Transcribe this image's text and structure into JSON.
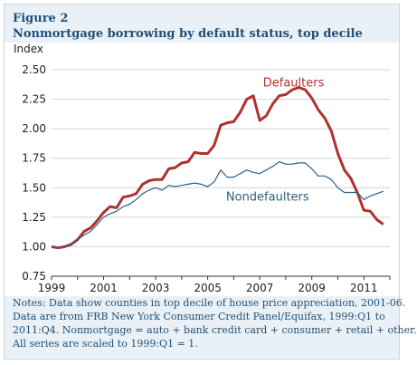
{
  "figure": {
    "label": "Figure 2",
    "title": "Nonmortgage borrowing by default status, top decile"
  },
  "notes": [
    "Notes: Data show counties in top decile of house price appreciation, 2001-06.",
    "Data are from FRB New York Consumer Credit Panel/Equifax, 1999:Q1 to",
    "2011:Q4. Nonmortgage = auto + bank credit card + consumer + retail + other.",
    "All series are scaled to 1999:Q1 = 1."
  ],
  "chart_data": {
    "type": "line",
    "ylabel": "Index",
    "xlabel": "",
    "xlim": [
      1999,
      2012
    ],
    "ylim": [
      0.75,
      2.5
    ],
    "y_ticks": [
      "0.75",
      "1.00",
      "1.25",
      "1.50",
      "1.75",
      "2.00",
      "2.25",
      "2.50"
    ],
    "x_ticks": [
      "1999",
      "2001",
      "2003",
      "2005",
      "2007",
      "2009",
      "2011"
    ],
    "grid": "horizontal",
    "series": [
      {
        "name": "Defaulters",
        "color": "#b0312d",
        "x": [
          1999,
          1999.25,
          1999.5,
          1999.75,
          2000,
          2000.25,
          2000.5,
          2000.75,
          2001,
          2001.25,
          2001.5,
          2001.75,
          2002,
          2002.25,
          2002.5,
          2002.75,
          2003,
          2003.25,
          2003.5,
          2003.75,
          2004,
          2004.25,
          2004.5,
          2004.75,
          2005,
          2005.25,
          2005.5,
          2005.75,
          2006,
          2006.25,
          2006.5,
          2006.75,
          2007,
          2007.25,
          2007.5,
          2007.75,
          2008,
          2008.25,
          2008.5,
          2008.75,
          2009,
          2009.25,
          2009.5,
          2009.75,
          2010,
          2010.25,
          2010.5,
          2010.75,
          2011,
          2011.25,
          2011.5,
          2011.75
        ],
        "values": [
          1.0,
          0.99,
          1.0,
          1.02,
          1.06,
          1.13,
          1.16,
          1.22,
          1.29,
          1.34,
          1.33,
          1.42,
          1.43,
          1.45,
          1.53,
          1.56,
          1.57,
          1.57,
          1.66,
          1.67,
          1.71,
          1.72,
          1.8,
          1.79,
          1.79,
          1.86,
          2.03,
          2.05,
          2.06,
          2.14,
          2.25,
          2.28,
          2.07,
          2.11,
          2.21,
          2.28,
          2.29,
          2.33,
          2.35,
          2.33,
          2.26,
          2.16,
          2.09,
          1.98,
          1.79,
          1.65,
          1.58,
          1.46,
          1.31,
          1.3,
          1.23,
          1.19
        ]
      },
      {
        "name": "Nondefaulters",
        "color": "#2f5f82",
        "x": [
          1999,
          1999.25,
          1999.5,
          1999.75,
          2000,
          2000.25,
          2000.5,
          2000.75,
          2001,
          2001.25,
          2001.5,
          2001.75,
          2002,
          2002.25,
          2002.5,
          2002.75,
          2003,
          2003.25,
          2003.5,
          2003.75,
          2004,
          2004.25,
          2004.5,
          2004.75,
          2005,
          2005.25,
          2005.5,
          2005.75,
          2006,
          2006.25,
          2006.5,
          2006.75,
          2007,
          2007.25,
          2007.5,
          2007.75,
          2008,
          2008.25,
          2008.5,
          2008.75,
          2009,
          2009.25,
          2009.5,
          2009.75,
          2010,
          2010.25,
          2010.5,
          2010.75,
          2011,
          2011.25,
          2011.5,
          2011.75
        ],
        "values": [
          1.0,
          0.99,
          1.0,
          1.02,
          1.06,
          1.1,
          1.13,
          1.19,
          1.25,
          1.28,
          1.3,
          1.34,
          1.36,
          1.4,
          1.45,
          1.48,
          1.5,
          1.48,
          1.52,
          1.51,
          1.52,
          1.53,
          1.54,
          1.53,
          1.51,
          1.55,
          1.65,
          1.59,
          1.59,
          1.62,
          1.65,
          1.63,
          1.62,
          1.65,
          1.68,
          1.72,
          1.7,
          1.7,
          1.71,
          1.71,
          1.66,
          1.6,
          1.6,
          1.57,
          1.5,
          1.46,
          1.46,
          1.46,
          1.4,
          1.43,
          1.45,
          1.47
        ]
      }
    ],
    "annotations": [
      {
        "text": "Defaulters",
        "x": 2008.3,
        "y": 2.39,
        "color": "#b0312d"
      },
      {
        "text": "Nondefaulters",
        "x": 2007.3,
        "y": 1.42,
        "color": "#2f5f82"
      }
    ]
  }
}
